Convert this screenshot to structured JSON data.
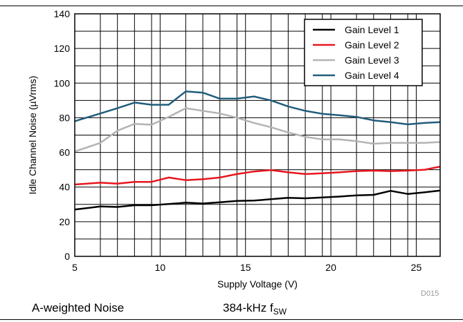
{
  "chart_data": {
    "type": "line",
    "xlabel": "Supply Voltage (V)",
    "ylabel": "Idle Channel Noise (µVrms)",
    "xlim": [
      5,
      26.4
    ],
    "ylim": [
      0,
      140
    ],
    "xticks": [
      5,
      10,
      15,
      20,
      25
    ],
    "yticks": [
      0,
      20,
      40,
      60,
      80,
      100,
      120,
      140
    ],
    "x_minor_gridlines": [
      6.5,
      7.5,
      8.5,
      9.5,
      11.5,
      12.5,
      13.5,
      14.5,
      16.5,
      17.5,
      18.5,
      19.5,
      21.5,
      22.5,
      23.5,
      24.5
    ],
    "y_minor_gridlines": [
      10,
      30,
      50,
      70,
      90,
      110,
      130
    ],
    "grid": true,
    "legend_position": "top-right",
    "x": [
      5,
      6.5,
      7.5,
      8.5,
      9.5,
      10.5,
      11.5,
      12.5,
      13.5,
      14.5,
      15.5,
      16.5,
      17.5,
      18.5,
      19.5,
      20.5,
      21.5,
      22.5,
      23.5,
      24.5,
      25.5,
      26.4
    ],
    "series": [
      {
        "name": "Gain Level 1",
        "color": "#000000",
        "values": [
          27,
          28.8,
          28.5,
          29.5,
          29.5,
          30.2,
          31,
          30.5,
          31.2,
          32,
          32.2,
          33,
          33.8,
          33.5,
          34,
          34.5,
          35.2,
          35.5,
          37.8,
          36,
          37,
          38
        ]
      },
      {
        "name": "Gain Level 2",
        "color": "#e8141c",
        "values": [
          41.5,
          42.5,
          42,
          43,
          43,
          45.5,
          44,
          44.5,
          45.5,
          47.5,
          49,
          49.8,
          48.5,
          47.5,
          48,
          48.5,
          49.2,
          49.5,
          49.2,
          49.5,
          50,
          51.8
        ]
      },
      {
        "name": "Gain Level 3",
        "color": "#b3b3b3",
        "values": [
          60.5,
          65.5,
          72.5,
          76.5,
          76,
          80.5,
          85.5,
          84,
          82.5,
          80,
          77,
          74.5,
          71.5,
          69,
          67.5,
          67.5,
          66.5,
          65,
          65.5,
          65.5,
          65.5,
          66
        ]
      },
      {
        "name": "Gain Level 4",
        "color": "#1f5c7a",
        "values": [
          78,
          82.5,
          85.5,
          88.8,
          87.5,
          87.5,
          95.2,
          94.5,
          91,
          91,
          92.3,
          90,
          86.5,
          84,
          82.3,
          81.5,
          80.5,
          78.5,
          77.5,
          76.2,
          77,
          77.5
        ]
      }
    ],
    "annotation": "D015"
  },
  "captions": {
    "left": "A-weighted Noise",
    "right_main": "384-kHz f",
    "right_sub": "SW"
  }
}
